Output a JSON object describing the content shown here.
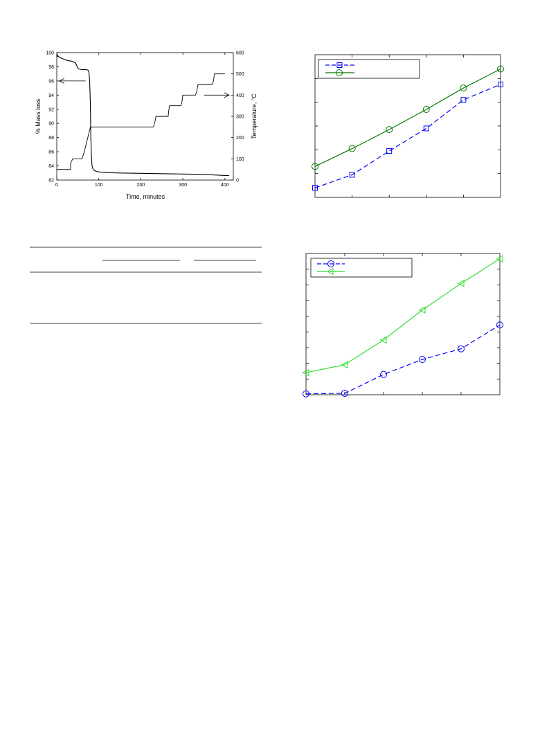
{
  "chart_data": [
    {
      "id": "tga",
      "type": "line",
      "xlabel": "Time, minutes",
      "ylabel": "% Mass loss",
      "y2label": "Temperature, °C",
      "xlim": [
        0,
        420
      ],
      "ylim": [
        82,
        100
      ],
      "y2lim": [
        0,
        600
      ],
      "xticks": [
        0,
        100,
        200,
        300,
        400
      ],
      "yticks": [
        82,
        84,
        86,
        88,
        90,
        92,
        94,
        96,
        98,
        100
      ],
      "y2ticks": [
        0,
        100,
        200,
        300,
        400,
        500,
        600
      ],
      "series": [
        {
          "axis": "left",
          "x": [
            0,
            1,
            2,
            3,
            5,
            8,
            12,
            16,
            20,
            25,
            30,
            35,
            40,
            45,
            48,
            50,
            52,
            55,
            60,
            65,
            70,
            73,
            75,
            76,
            77,
            78,
            79,
            80,
            80.5,
            81,
            82,
            83,
            84,
            86,
            88,
            90,
            95,
            100,
            120,
            150,
            200,
            250,
            300,
            350,
            380,
            400,
            410
          ],
          "values": [
            99.8,
            99.4,
            99.7,
            99.5,
            99.4,
            99.3,
            99.2,
            99.1,
            99.0,
            98.9,
            98.85,
            98.8,
            98.7,
            98.5,
            98.1,
            97.8,
            97.7,
            97.65,
            97.6,
            97.6,
            97.6,
            97.55,
            97.5,
            97.3,
            97.0,
            96.0,
            94.5,
            92.5,
            90.5,
            88.0,
            86.0,
            84.8,
            84.0,
            83.6,
            83.4,
            83.35,
            83.2,
            83.15,
            83.05,
            83.0,
            82.95,
            82.9,
            82.85,
            82.8,
            82.7,
            82.65,
            82.65
          ]
        },
        {
          "axis": "right",
          "x": [
            0,
            33,
            33,
            38,
            38,
            60,
            60,
            65,
            80,
            230,
            233,
            236,
            236,
            265,
            266,
            268,
            268,
            295,
            298,
            300,
            300,
            330,
            333,
            336,
            336,
            370,
            373,
            375,
            375,
            400
          ],
          "values": [
            50,
            50,
            80,
            100,
            100,
            100,
            100,
            130,
            250,
            250,
            270,
            300,
            300,
            300,
            320,
            350,
            350,
            350,
            370,
            400,
            400,
            400,
            420,
            450,
            450,
            450,
            470,
            500,
            500,
            500
          ]
        }
      ],
      "annotations": [
        {
          "text": "←",
          "x": 30,
          "y": 96,
          "axis": "left"
        },
        {
          "text": "→",
          "x": 340,
          "y": 400,
          "axis": "right"
        }
      ]
    },
    {
      "id": "top-right",
      "type": "line",
      "xlim": [
        0,
        5
      ],
      "ylim": [
        0,
        6
      ],
      "legend": "top-left",
      "series": [
        {
          "marker": "square",
          "dash": true,
          "color": "#0000ff",
          "x": [
            0,
            1,
            2,
            3,
            4,
            5
          ],
          "values": [
            0.4,
            0.95,
            1.95,
            2.9,
            4.1,
            4.75
          ]
        },
        {
          "marker": "circle",
          "dash": false,
          "color": "#007700",
          "x": [
            0,
            1,
            2,
            3,
            4,
            5
          ],
          "values": [
            1.3,
            2.05,
            2.85,
            3.7,
            4.6,
            5.4
          ]
        }
      ]
    },
    {
      "id": "bottom-right",
      "type": "line",
      "xlim": [
        0,
        5
      ],
      "ylim": [
        0,
        8
      ],
      "legend": "top-left",
      "series": [
        {
          "marker": "circle",
          "dash": true,
          "color": "#0000ff",
          "x": [
            0,
            1,
            2,
            3,
            4,
            5
          ],
          "values": [
            0.05,
            0.08,
            1.15,
            2.0,
            2.6,
            3.95
          ]
        },
        {
          "marker": "triangle-left",
          "dash": false,
          "color": "#33dd33",
          "x": [
            0,
            1,
            2,
            3,
            4,
            5
          ],
          "values": [
            1.25,
            1.7,
            3.1,
            4.8,
            6.3,
            7.7
          ]
        }
      ]
    }
  ]
}
